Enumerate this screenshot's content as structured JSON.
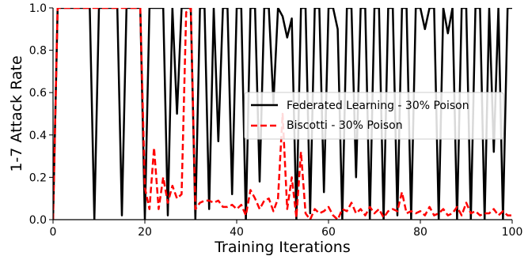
{
  "chart_data": {
    "type": "line",
    "title": "",
    "xlabel": "Training Iterations",
    "ylabel": "1-7 Attack Rate",
    "xlim": [
      0,
      100
    ],
    "ylim": [
      0,
      1.0
    ],
    "xticks": [
      "0",
      "20",
      "40",
      "60",
      "80",
      "100"
    ],
    "yticks": [
      "0.0",
      "0.2",
      "0.4",
      "0.6",
      "0.8",
      "1.0"
    ],
    "legend_position": "center-right",
    "grid": false,
    "series": [
      {
        "name": "Federated Learning - 30% Poison",
        "color": "#000000",
        "style": "solid",
        "x": [
          0,
          1,
          2,
          3,
          4,
          5,
          6,
          7,
          8,
          9,
          10,
          11,
          12,
          13,
          14,
          15,
          16,
          17,
          18,
          19,
          20,
          21,
          22,
          23,
          24,
          25,
          26,
          27,
          28,
          29,
          30,
          31,
          32,
          33,
          34,
          35,
          36,
          37,
          38,
          39,
          40,
          41,
          42,
          43,
          44,
          45,
          46,
          47,
          48,
          49,
          50,
          51,
          52,
          53,
          54,
          55,
          56,
          57,
          58,
          59,
          60,
          61,
          62,
          63,
          64,
          65,
          66,
          67,
          68,
          69,
          70,
          71,
          72,
          73,
          74,
          75,
          76,
          77,
          78,
          79,
          80,
          81,
          82,
          83,
          84,
          85,
          86,
          87,
          88,
          89,
          90,
          91,
          92,
          93,
          94,
          95,
          96,
          97,
          98,
          99,
          100
        ],
        "y": [
          0.0,
          1.0,
          1.0,
          1.0,
          1.0,
          1.0,
          1.0,
          1.0,
          1.0,
          0.0,
          1.0,
          1.0,
          1.0,
          1.0,
          1.0,
          0.02,
          1.0,
          1.0,
          1.0,
          1.0,
          0.0,
          1.0,
          1.0,
          1.0,
          1.0,
          0.02,
          1.0,
          0.5,
          1.0,
          1.0,
          1.0,
          0.0,
          1.0,
          1.0,
          0.05,
          1.0,
          0.37,
          1.0,
          1.0,
          0.12,
          1.0,
          1.0,
          0.0,
          1.0,
          1.0,
          0.18,
          1.0,
          1.0,
          0.55,
          1.0,
          0.96,
          0.86,
          0.95,
          0.0,
          1.0,
          1.0,
          0.03,
          1.0,
          1.0,
          0.13,
          1.0,
          1.0,
          0.9,
          0.0,
          1.0,
          1.0,
          0.2,
          1.0,
          1.0,
          0.0,
          1.0,
          1.0,
          0.0,
          1.0,
          1.0,
          0.02,
          1.0,
          1.0,
          0.0,
          1.0,
          1.0,
          0.9,
          1.0,
          1.0,
          0.0,
          1.0,
          0.88,
          1.0,
          0.0,
          1.0,
          1.0,
          0.0,
          1.0,
          1.0,
          0.0,
          1.0,
          0.32,
          1.0,
          0.0,
          1.0,
          1.0
        ]
      },
      {
        "name": "Biscotti - 30% Poison",
        "color": "#ff0000",
        "style": "dashed",
        "x": [
          0,
          1,
          2,
          3,
          4,
          5,
          6,
          7,
          8,
          9,
          10,
          11,
          12,
          13,
          14,
          15,
          16,
          17,
          18,
          19,
          20,
          21,
          22,
          23,
          24,
          25,
          26,
          27,
          28,
          29,
          30,
          31,
          32,
          33,
          34,
          35,
          36,
          37,
          38,
          39,
          40,
          41,
          42,
          43,
          44,
          45,
          46,
          47,
          48,
          49,
          50,
          51,
          52,
          53,
          54,
          55,
          56,
          57,
          58,
          59,
          60,
          61,
          62,
          63,
          64,
          65,
          66,
          67,
          68,
          69,
          70,
          71,
          72,
          73,
          74,
          75,
          76,
          77,
          78,
          79,
          80,
          81,
          82,
          83,
          84,
          85,
          86,
          87,
          88,
          89,
          90,
          91,
          92,
          93,
          94,
          95,
          96,
          97,
          98,
          99,
          100
        ],
        "y": [
          0.0,
          1.0,
          1.0,
          1.0,
          1.0,
          1.0,
          1.0,
          1.0,
          1.0,
          1.0,
          1.0,
          1.0,
          1.0,
          1.0,
          1.0,
          1.0,
          1.0,
          1.0,
          1.0,
          1.0,
          0.15,
          0.05,
          0.34,
          0.05,
          0.2,
          0.08,
          0.16,
          0.1,
          0.12,
          0.98,
          1.0,
          0.05,
          0.08,
          0.09,
          0.09,
          0.08,
          0.09,
          0.06,
          0.06,
          0.07,
          0.05,
          0.07,
          0.02,
          0.14,
          0.1,
          0.05,
          0.09,
          0.1,
          0.04,
          0.1,
          0.5,
          0.05,
          0.2,
          0.01,
          0.32,
          0.03,
          0.0,
          0.05,
          0.03,
          0.04,
          0.06,
          0.02,
          0.0,
          0.05,
          0.04,
          0.08,
          0.03,
          0.05,
          0.02,
          0.06,
          0.03,
          0.05,
          0.01,
          0.04,
          0.05,
          0.04,
          0.13,
          0.03,
          0.04,
          0.03,
          0.04,
          0.02,
          0.06,
          0.02,
          0.03,
          0.05,
          0.02,
          0.03,
          0.06,
          0.02,
          0.08,
          0.03,
          0.04,
          0.02,
          0.03,
          0.03,
          0.05,
          0.02,
          0.04,
          0.02,
          0.02
        ]
      }
    ]
  }
}
